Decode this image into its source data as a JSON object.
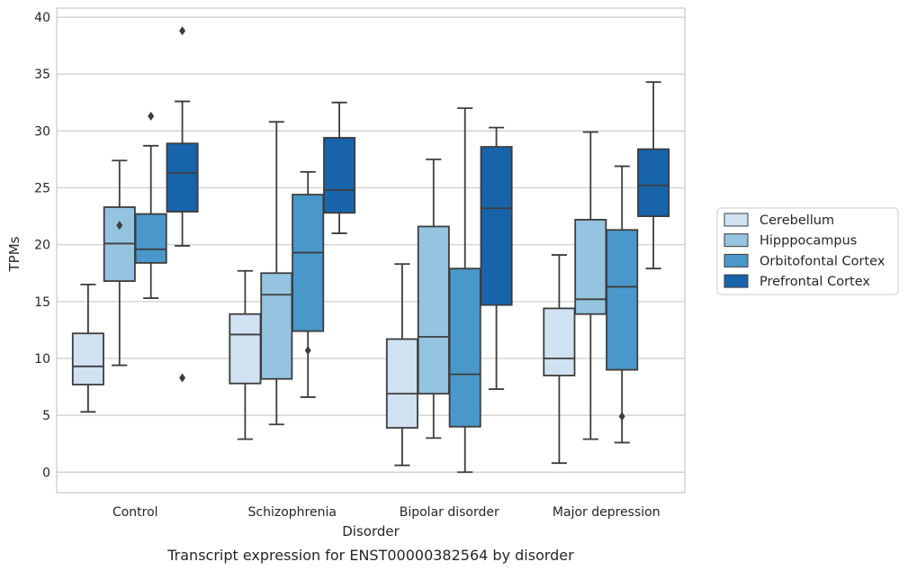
{
  "chart_data": {
    "type": "box",
    "caption": "Transcript expression for ENST00000382564 by disorder",
    "xlabel": "Disorder",
    "ylabel": "TPMs",
    "ylim": [
      -1.8,
      40.8
    ],
    "yticks": [
      0,
      5,
      10,
      15,
      20,
      25,
      30,
      35,
      40
    ],
    "grid": "horizontal",
    "legend_position": "right",
    "categories": [
      "Control",
      "Schizophrenia",
      "Bipolar disorder",
      "Major depression"
    ],
    "series": [
      {
        "name": "Cerebellum",
        "color": "#d0e1f2",
        "boxes": [
          {
            "whisker_low": 5.3,
            "q1": 7.7,
            "median": 9.3,
            "q3": 12.2,
            "whisker_high": 16.5,
            "outliers": []
          },
          {
            "whisker_low": 2.9,
            "q1": 7.8,
            "median": 12.1,
            "q3": 13.9,
            "whisker_high": 17.7,
            "outliers": []
          },
          {
            "whisker_low": 0.6,
            "q1": 3.9,
            "median": 6.9,
            "q3": 11.7,
            "whisker_high": 18.3,
            "outliers": []
          },
          {
            "whisker_low": 0.8,
            "q1": 8.5,
            "median": 10.0,
            "q3": 14.4,
            "whisker_high": 19.1,
            "outliers": []
          }
        ]
      },
      {
        "name": "Hipppocampus",
        "color": "#94c4df",
        "boxes": [
          {
            "whisker_low": 9.4,
            "q1": 16.8,
            "median": 20.1,
            "q3": 23.3,
            "whisker_high": 27.4,
            "outliers": [
              21.7
            ]
          },
          {
            "whisker_low": 4.2,
            "q1": 8.2,
            "median": 15.6,
            "q3": 17.5,
            "whisker_high": 30.8,
            "outliers": []
          },
          {
            "whisker_low": 3.0,
            "q1": 6.9,
            "median": 11.9,
            "q3": 21.6,
            "whisker_high": 27.5,
            "outliers": []
          },
          {
            "whisker_low": 2.9,
            "q1": 13.9,
            "median": 15.2,
            "q3": 22.2,
            "whisker_high": 29.9,
            "outliers": []
          }
        ]
      },
      {
        "name": "Orbitofontal Cortex",
        "color": "#4a98c9",
        "boxes": [
          {
            "whisker_low": 15.3,
            "q1": 18.4,
            "median": 19.6,
            "q3": 22.7,
            "whisker_high": 28.7,
            "outliers": [
              31.3
            ]
          },
          {
            "whisker_low": 6.6,
            "q1": 12.4,
            "median": 19.3,
            "q3": 24.4,
            "whisker_high": 26.4,
            "outliers": [
              10.7
            ]
          },
          {
            "whisker_low": 0.0,
            "q1": 4.0,
            "median": 8.6,
            "q3": 17.9,
            "whisker_high": 32.0,
            "outliers": []
          },
          {
            "whisker_low": 2.6,
            "q1": 9.0,
            "median": 16.3,
            "q3": 21.3,
            "whisker_high": 26.9,
            "outliers": [
              4.9
            ]
          }
        ]
      },
      {
        "name": "Prefrontal Cortex",
        "color": "#1764ab",
        "boxes": [
          {
            "whisker_low": 19.9,
            "q1": 22.9,
            "median": 26.3,
            "q3": 28.9,
            "whisker_high": 32.6,
            "outliers": [
              38.8,
              8.3
            ]
          },
          {
            "whisker_low": 21.0,
            "q1": 22.8,
            "median": 24.8,
            "q3": 29.4,
            "whisker_high": 32.5,
            "outliers": []
          },
          {
            "whisker_low": 7.3,
            "q1": 14.7,
            "median": 23.2,
            "q3": 28.6,
            "whisker_high": 30.3,
            "outliers": []
          },
          {
            "whisker_low": 17.9,
            "q1": 22.5,
            "median": 25.2,
            "q3": 28.4,
            "whisker_high": 34.3,
            "outliers": []
          }
        ]
      }
    ]
  }
}
